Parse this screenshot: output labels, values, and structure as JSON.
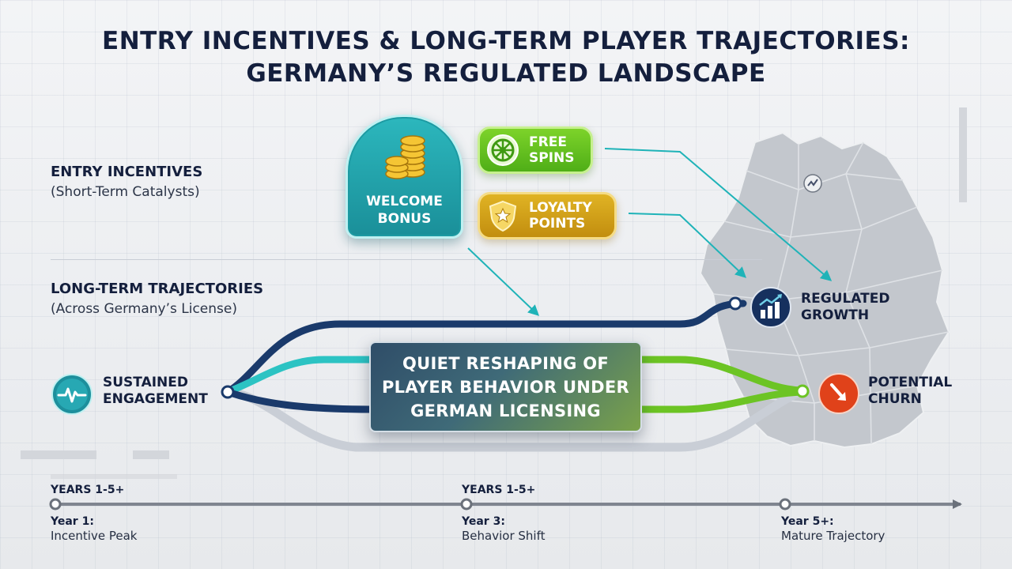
{
  "title": {
    "line1": "ENTRY INCENTIVES & LONG-TERM PLAYER TRAJECTORIES:",
    "line2": "GERMANY’S REGULATED LANDSCAPE"
  },
  "sections": {
    "entry": {
      "heading": "ENTRY INCENTIVES",
      "sub": "(Short-Term Catalysts)"
    },
    "trajectories": {
      "heading": "LONG-TERM TRAJECTORIES",
      "sub": "(Across Germany’s License)"
    }
  },
  "incentives": {
    "welcome": {
      "line1": "WELCOME",
      "line2": "BONUS",
      "icon": "coin-stack-icon"
    },
    "free_spins": {
      "line1": "FREE",
      "line2": "SPINS",
      "icon": "wheel-icon"
    },
    "loyalty": {
      "line1": "LOYALTY",
      "line2": "POINTS",
      "icon": "star-shield-icon"
    }
  },
  "center": {
    "line1": "QUIET RESHAPING OF",
    "line2": "PLAYER BEHAVIOR UNDER",
    "line3": "GERMAN LICENSING"
  },
  "nodes": {
    "sustained": {
      "line1": "SUSTAINED",
      "line2": "ENGAGEMENT",
      "icon": "heartbeat-icon"
    },
    "regulated": {
      "line1": "REGULATED",
      "line2": "GROWTH",
      "icon": "growth-chart-icon"
    },
    "churn": {
      "line1": "POTENTIAL",
      "line2": "CHURN",
      "icon": "down-arrow-icon"
    }
  },
  "timeline": {
    "headings": [
      "YEARS 1-5+",
      "YEARS 1-5+"
    ],
    "points": [
      {
        "year": "Year 1:",
        "desc": "Incentive Peak"
      },
      {
        "year": "Year 3:",
        "desc": "Behavior Shift"
      },
      {
        "year": "Year 5+:",
        "desc": "Mature Trajectory"
      }
    ]
  },
  "colors": {
    "navy": "#1a3a6b",
    "teal": "#2cc3c3",
    "green": "#6cc424",
    "gold": "#d4a017",
    "red": "#e0421a"
  }
}
